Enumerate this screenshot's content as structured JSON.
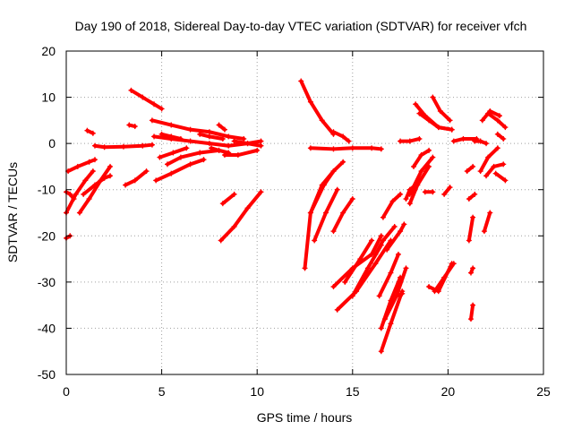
{
  "chart_data": {
    "type": "scatter",
    "title": "Day 190 of 2018, Sidereal Day-to-day VTEC variation (SDTVAR) for receiver vfch",
    "xlabel": "GPS time / hours",
    "ylabel": "SDTVAR / TECUs",
    "xlim": [
      0,
      25
    ],
    "ylim": [
      -50,
      20
    ],
    "xticks": [
      0,
      5,
      10,
      15,
      20,
      25
    ],
    "yticks": [
      -50,
      -40,
      -30,
      -20,
      -10,
      0,
      10,
      20
    ],
    "xtick_labels": [
      "0",
      "5",
      "10",
      "15",
      "20",
      "25"
    ],
    "ytick_labels": [
      "-50",
      "-40",
      "-30",
      "-20",
      "-10",
      "0",
      "10",
      "20"
    ],
    "grid": true,
    "grid_style": "dotted",
    "marker": "plus",
    "series_color": "#ff0000",
    "tracks": [
      {
        "x": [
          0.0,
          0.2,
          0.4
        ],
        "y": [
          -10.5,
          -11.0,
          -12.0
        ]
      },
      {
        "x": [
          0.0,
          0.2
        ],
        "y": [
          -20.5,
          -20.0
        ]
      },
      {
        "x": [
          0.0,
          0.5,
          1.0,
          1.4
        ],
        "y": [
          -15.0,
          -11.0,
          -8.0,
          -6.0
        ]
      },
      {
        "x": [
          0.1,
          0.6,
          1.2,
          1.5
        ],
        "y": [
          -6.0,
          -5.0,
          -4.0,
          -3.5
        ]
      },
      {
        "x": [
          0.7,
          1.2,
          1.8,
          2.3
        ],
        "y": [
          -15.0,
          -12.0,
          -8.0,
          -5.0
        ]
      },
      {
        "x": [
          0.9,
          1.5,
          2.0,
          2.3
        ],
        "y": [
          -11.0,
          -9.0,
          -7.5,
          -7.0
        ]
      },
      {
        "x": [
          1.1,
          1.4
        ],
        "y": [
          2.8,
          2.2
        ]
      },
      {
        "x": [
          1.5,
          2.0,
          3.0,
          4.0,
          4.5
        ],
        "y": [
          -0.5,
          -0.8,
          -0.7,
          -0.5,
          -0.3
        ]
      },
      {
        "x": [
          3.3,
          3.6
        ],
        "y": [
          4.0,
          3.7
        ]
      },
      {
        "x": [
          3.1,
          3.6,
          4.2
        ],
        "y": [
          -9.0,
          -8.0,
          -6.0
        ]
      },
      {
        "x": [
          3.4,
          4.0,
          4.6,
          5.0
        ],
        "y": [
          11.5,
          10.0,
          8.5,
          7.5
        ]
      },
      {
        "x": [
          4.7,
          5.5,
          6.5,
          7.2
        ],
        "y": [
          -8.0,
          -6.5,
          -4.5,
          -3.5
        ]
      },
      {
        "x": [
          4.5,
          5.5,
          6.5,
          7.5,
          8.5,
          9.3
        ],
        "y": [
          5.0,
          4.0,
          3.0,
          2.5,
          1.5,
          1.0
        ]
      },
      {
        "x": [
          4.6,
          5.5,
          6.5,
          7.5,
          8.5,
          9.5,
          10.2
        ],
        "y": [
          1.5,
          1.0,
          0.5,
          0.0,
          -0.5,
          0.0,
          0.5
        ]
      },
      {
        "x": [
          4.9,
          5.6,
          6.3
        ],
        "y": [
          -3.0,
          -2.0,
          -1.0
        ]
      },
      {
        "x": [
          5.3,
          6.0,
          7.0,
          8.0
        ],
        "y": [
          -4.5,
          -3.0,
          -2.0,
          -1.5
        ]
      },
      {
        "x": [
          5.0,
          5.5,
          6.0
        ],
        "y": [
          2.0,
          1.5,
          1.0
        ]
      },
      {
        "x": [
          7.0,
          7.5,
          8.2
        ],
        "y": [
          2.0,
          1.5,
          1.0
        ]
      },
      {
        "x": [
          7.6,
          8.0,
          8.5
        ],
        "y": [
          -1.0,
          -1.5,
          -2.0
        ]
      },
      {
        "x": [
          8.3,
          9.0,
          10.0
        ],
        "y": [
          -2.5,
          -2.5,
          -1.5
        ]
      },
      {
        "x": [
          8.0,
          8.3
        ],
        "y": [
          4.0,
          3.0
        ]
      },
      {
        "x": [
          8.2,
          8.8
        ],
        "y": [
          -13.0,
          -11.0
        ]
      },
      {
        "x": [
          8.1,
          8.8,
          9.5,
          10.2
        ],
        "y": [
          -21.0,
          -18.0,
          -14.0,
          -10.5
        ]
      },
      {
        "x": [
          8.8,
          9.5,
          10.2
        ],
        "y": [
          0.5,
          0.0,
          -0.5
        ]
      },
      {
        "x": [
          12.3,
          12.8,
          13.4,
          14.0
        ],
        "y": [
          13.5,
          9.0,
          5.0,
          2.0
        ]
      },
      {
        "x": [
          12.5,
          12.8,
          13.4,
          14.0
        ],
        "y": [
          -27.0,
          -15.0,
          -9.0,
          -6.0
        ]
      },
      {
        "x": [
          12.8,
          13.5,
          14.0,
          14.5
        ],
        "y": [
          -15.0,
          -9.0,
          -6.0,
          -4.0
        ]
      },
      {
        "x": [
          13.0,
          13.6,
          14.2
        ],
        "y": [
          -21.0,
          -15.0,
          -10.0
        ]
      },
      {
        "x": [
          12.8,
          14.0,
          15.0,
          16.0,
          16.5
        ],
        "y": [
          -1.0,
          -1.2,
          -1.0,
          -1.0,
          -1.2
        ]
      },
      {
        "x": [
          14.0,
          14.5,
          14.8
        ],
        "y": [
          2.5,
          1.5,
          0.5
        ]
      },
      {
        "x": [
          14.0,
          14.5,
          15.0
        ],
        "y": [
          -19.0,
          -15.0,
          -12.0
        ]
      },
      {
        "x": [
          14.0,
          15.0,
          16.0,
          16.5
        ],
        "y": [
          -31.0,
          -27.0,
          -24.0,
          -20.0
        ]
      },
      {
        "x": [
          14.2,
          15.2,
          16.2,
          17.0
        ],
        "y": [
          -36.0,
          -32.0,
          -26.0,
          -21.0
        ]
      },
      {
        "x": [
          14.6,
          15.4,
          16.0
        ],
        "y": [
          -30.0,
          -25.0,
          -21.0
        ]
      },
      {
        "x": [
          15.0,
          15.8,
          16.5
        ],
        "y": [
          -33.0,
          -27.0,
          -22.0
        ]
      },
      {
        "x": [
          16.2,
          16.6,
          17.2
        ],
        "y": [
          -24.0,
          -21.0,
          -18.0
        ]
      },
      {
        "x": [
          16.4,
          17.0,
          17.4
        ],
        "y": [
          -33.0,
          -28.0,
          -24.0
        ]
      },
      {
        "x": [
          16.5,
          17.0,
          17.5
        ],
        "y": [
          -40.0,
          -34.0,
          -29.0
        ]
      },
      {
        "x": [
          16.5,
          17.0,
          17.6
        ],
        "y": [
          -45.0,
          -39.0,
          -32.0
        ]
      },
      {
        "x": [
          16.7,
          17.3,
          17.8
        ],
        "y": [
          -38.0,
          -33.0,
          -27.0
        ]
      },
      {
        "x": [
          16.6,
          17.1,
          17.5
        ],
        "y": [
          -16.0,
          -12.5,
          -11.0
        ]
      },
      {
        "x": [
          16.8,
          17.5,
          17.7
        ],
        "y": [
          -23.0,
          -19.0,
          -17.5
        ]
      },
      {
        "x": [
          17.3,
          17.6
        ],
        "y": [
          -33.0,
          -32.5
        ]
      },
      {
        "x": [
          17.5,
          18.0,
          18.5
        ],
        "y": [
          0.5,
          0.5,
          1.0
        ]
      },
      {
        "x": [
          17.8,
          18.0,
          18.3
        ],
        "y": [
          -12.0,
          -10.0,
          -9.0
        ]
      },
      {
        "x": [
          18.0,
          18.4,
          19.0
        ],
        "y": [
          -13.0,
          -9.0,
          -5.0
        ]
      },
      {
        "x": [
          18.0,
          18.6,
          19.2
        ],
        "y": [
          -11.0,
          -6.0,
          -3.0
        ]
      },
      {
        "x": [
          18.2,
          18.6,
          19.0
        ],
        "y": [
          -5.0,
          -2.5,
          -1.5
        ]
      },
      {
        "x": [
          18.3,
          18.8,
          19.5,
          20.2
        ],
        "y": [
          8.5,
          6.0,
          3.5,
          3.0
        ]
      },
      {
        "x": [
          18.5,
          19.0,
          19.5,
          20.2
        ],
        "y": [
          6.5,
          5.0,
          3.5,
          3.0
        ]
      },
      {
        "x": [
          19.2,
          19.6,
          20.1
        ],
        "y": [
          10.0,
          7.0,
          5.0
        ]
      },
      {
        "x": [
          18.8,
          19.2
        ],
        "y": [
          -10.5,
          -10.5
        ]
      },
      {
        "x": [
          19.0,
          19.5,
          20.2
        ],
        "y": [
          -31.0,
          -32.0,
          -26.0
        ]
      },
      {
        "x": [
          19.3,
          19.8,
          20.3
        ],
        "y": [
          -32.0,
          -29.0,
          -26.0
        ]
      },
      {
        "x": [
          19.8,
          20.1
        ],
        "y": [
          -11.0,
          -9.5
        ]
      },
      {
        "x": [
          20.3,
          20.8,
          21.5
        ],
        "y": [
          0.5,
          1.0,
          1.0
        ]
      },
      {
        "x": [
          21.0,
          21.3
        ],
        "y": [
          -6.0,
          -5.0
        ]
      },
      {
        "x": [
          21.1,
          21.4
        ],
        "y": [
          -12.0,
          -11.0
        ]
      },
      {
        "x": [
          21.1,
          21.3
        ],
        "y": [
          -21.0,
          -16.0
        ]
      },
      {
        "x": [
          21.2,
          21.3
        ],
        "y": [
          -28.0,
          -27.0
        ]
      },
      {
        "x": [
          21.2,
          21.3
        ],
        "y": [
          -38.0,
          -35.0
        ]
      },
      {
        "x": [
          21.4,
          21.7,
          22.0
        ],
        "y": [
          0.5,
          0.5,
          0.0
        ]
      },
      {
        "x": [
          21.7,
          22.1,
          22.6
        ],
        "y": [
          -6.0,
          -3.0,
          -1.0
        ]
      },
      {
        "x": [
          22.0,
          22.4,
          22.9
        ],
        "y": [
          -7.0,
          -5.0,
          -4.5
        ]
      },
      {
        "x": [
          21.8,
          22.2,
          22.7
        ],
        "y": [
          5.0,
          7.0,
          6.0
        ]
      },
      {
        "x": [
          22.1,
          22.6,
          23.0
        ],
        "y": [
          6.5,
          5.0,
          3.5
        ]
      },
      {
        "x": [
          21.9,
          22.2
        ],
        "y": [
          -19.0,
          -15.0
        ]
      },
      {
        "x": [
          22.5,
          23.0
        ],
        "y": [
          -6.5,
          -8.0
        ]
      },
      {
        "x": [
          22.6,
          22.9
        ],
        "y": [
          2.0,
          1.0
        ]
      }
    ]
  }
}
